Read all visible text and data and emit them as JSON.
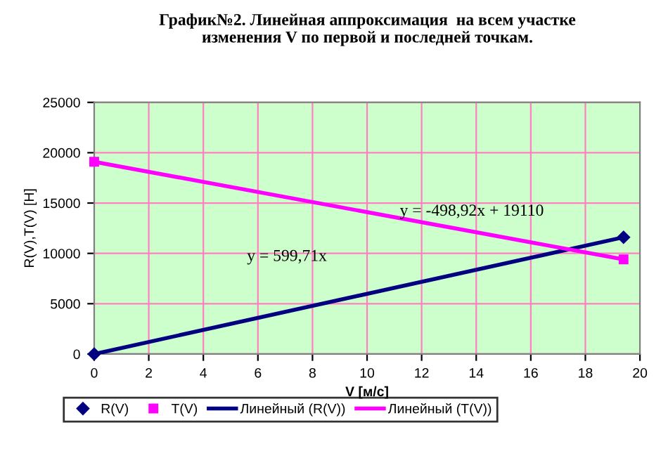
{
  "chart_data": {
    "type": "scatter",
    "title": "График№2. Линейная аппроксимация  на всем участке\nизменения V по первой и последней точкам.",
    "xlabel": "V [м/с]",
    "ylabel": "R(V),T(V) [H]",
    "xlim": [
      0,
      20
    ],
    "xticks": [
      0,
      2,
      4,
      6,
      8,
      10,
      12,
      14,
      16,
      18,
      20
    ],
    "ylim": [
      0,
      25000
    ],
    "yticks": [
      0,
      5000,
      10000,
      15000,
      20000,
      25000
    ],
    "grid": true,
    "legend": "bottom",
    "x": [
      0,
      19.4
    ],
    "series": [
      {
        "name": "R(V)",
        "marker": "diamond",
        "color": "#000080",
        "values": [
          0,
          11600
        ]
      },
      {
        "name": "T(V)",
        "marker": "square",
        "color": "#ff00ff",
        "values": [
          19100,
          9400
        ]
      },
      {
        "name": "Линейный (R(V))",
        "type": "line",
        "marker": "none",
        "color": "#000080",
        "values": [
          0,
          11600
        ]
      },
      {
        "name": "Линейный (T(V))",
        "type": "line",
        "marker": "none",
        "color": "#ff00ff",
        "values": [
          19100,
          9400
        ]
      }
    ],
    "annotations": [
      "y = -498,92x + 19110",
      "y = 599,71x"
    ]
  }
}
